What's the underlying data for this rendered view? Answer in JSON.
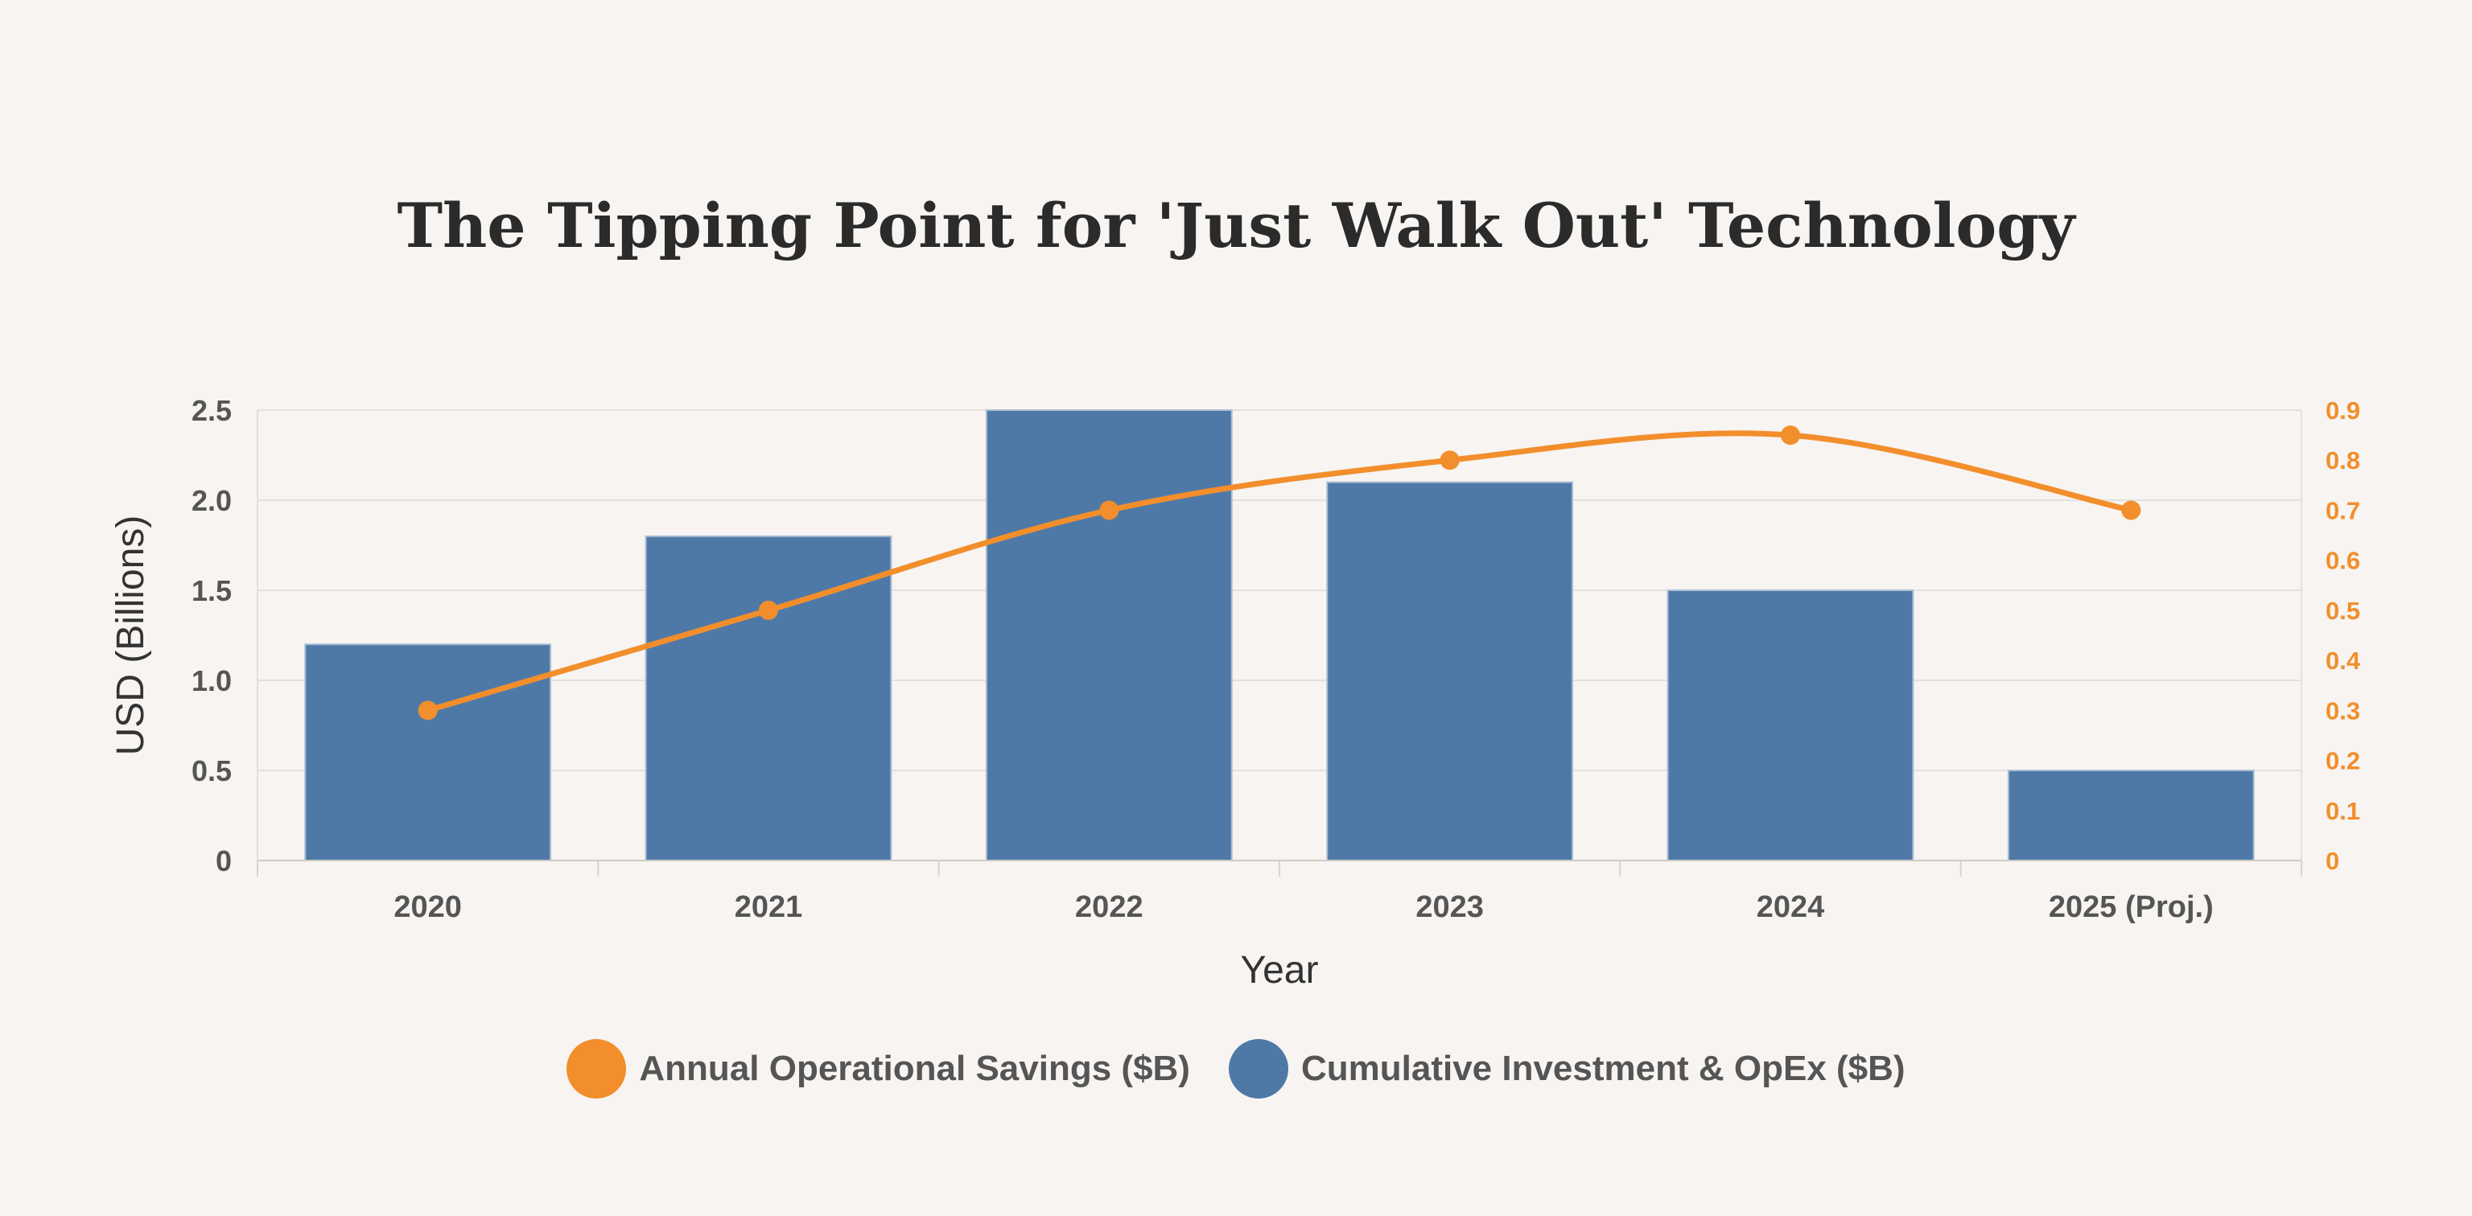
{
  "title": "The Tipping Point for 'Just Walk Out' Technology",
  "chart_data": {
    "type": "bar",
    "categories": [
      "2020",
      "2021",
      "2022",
      "2023",
      "2024",
      "2025 (Proj.)"
    ],
    "series": [
      {
        "name": "Cumulative Investment & OpEx ($B)",
        "type": "bar",
        "axis": "left",
        "color": "#4e79a7",
        "values": [
          1.2,
          1.8,
          2.5,
          2.1,
          1.5,
          0.5
        ]
      },
      {
        "name": "Annual Operational Savings ($B)",
        "type": "line",
        "axis": "right",
        "color": "#f28e2b",
        "values": [
          0.3,
          0.5,
          0.7,
          0.8,
          0.85,
          0.7
        ]
      }
    ],
    "xlabel": "Year",
    "ylabel": "USD (Billions)",
    "ylim": [
      0,
      2.5
    ],
    "y_ticks": [
      "0",
      "0.5",
      "1.0",
      "1.5",
      "2.0",
      "2.5"
    ],
    "y2lim": [
      0,
      0.9
    ],
    "y2_ticks": [
      "0",
      "0.1",
      "0.2",
      "0.3",
      "0.4",
      "0.5",
      "0.6",
      "0.7",
      "0.8",
      "0.9"
    ],
    "grid": true,
    "legend_position": "bottom"
  },
  "legend": {
    "items": [
      {
        "label": "Annual Operational Savings ($B)",
        "color": "#f28e2b"
      },
      {
        "label": "Cumulative Investment & OpEx ($B)",
        "color": "#4e79a7"
      }
    ]
  }
}
